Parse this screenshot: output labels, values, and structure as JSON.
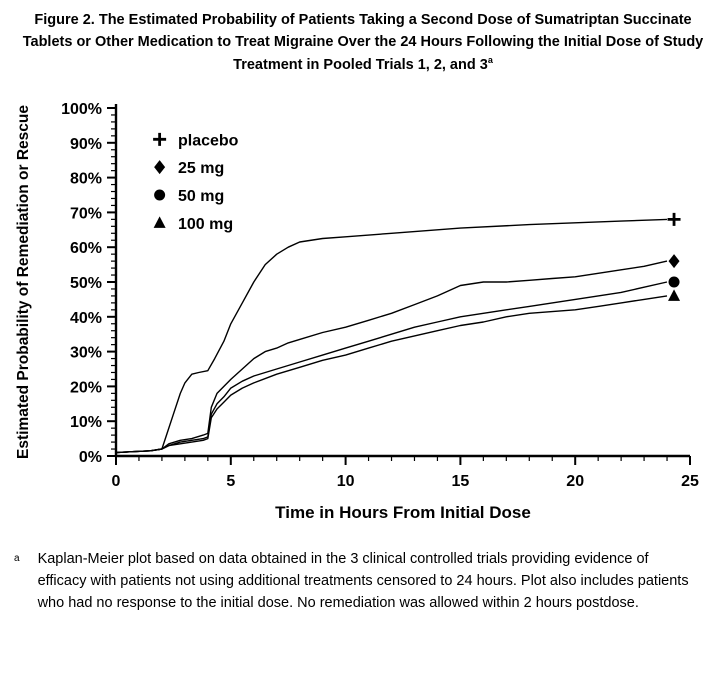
{
  "figure": {
    "title": "Figure 2. The Estimated Probability of Patients Taking a Second Dose of Sumatriptan Succinate Tablets or Other Medication to Treat Migraine Over the 24 Hours Following the Initial Dose of Study Treatment in Pooled Trials 1, 2, and 3",
    "title_sup": "a"
  },
  "footnote": {
    "marker": "a",
    "text": "Kaplan-Meier plot based on data obtained in the 3 clinical controlled trials providing evidence of efficacy with patients not using additional treatments censored to 24 hours. Plot also includes patients who had no response to the initial dose. No remediation was allowed within 2 hours postdose."
  },
  "chart_data": {
    "type": "line",
    "title": "",
    "xlabel": "Time in Hours From Initial Dose",
    "ylabel": "Estimated Probability of Remediation or Rescue",
    "xlim": [
      0,
      25
    ],
    "ylim": [
      0,
      100
    ],
    "xticks": [
      "0",
      "5",
      "10",
      "15",
      "20",
      "25"
    ],
    "xtick_values": [
      0,
      5,
      10,
      15,
      20,
      25
    ],
    "yticks": [
      "0%",
      "10%",
      "20%",
      "30%",
      "40%",
      "50%",
      "60%",
      "70%",
      "80%",
      "90%",
      "100%"
    ],
    "ytick_values": [
      0,
      10,
      20,
      30,
      40,
      50,
      60,
      70,
      80,
      90,
      100
    ],
    "grid": false,
    "line_color": "#000000",
    "legend_position": "upper-left-inside",
    "legend": [
      {
        "marker": "plus",
        "label": "placebo"
      },
      {
        "marker": "diamond",
        "label": "25 mg"
      },
      {
        "marker": "circle",
        "label": "50 mg"
      },
      {
        "marker": "triangle",
        "label": "100 mg"
      }
    ],
    "series": [
      {
        "name": "placebo",
        "marker": "plus",
        "end_value": 68,
        "points": [
          [
            0,
            1
          ],
          [
            1.5,
            1.5
          ],
          [
            2,
            2
          ],
          [
            2.2,
            6
          ],
          [
            2.5,
            12
          ],
          [
            2.8,
            18
          ],
          [
            3,
            21
          ],
          [
            3.3,
            23.5
          ],
          [
            3.6,
            24
          ],
          [
            4,
            24.5
          ],
          [
            4.3,
            28
          ],
          [
            4.7,
            33
          ],
          [
            5,
            38
          ],
          [
            5.5,
            44
          ],
          [
            6,
            50
          ],
          [
            6.5,
            55
          ],
          [
            7,
            58
          ],
          [
            7.5,
            60
          ],
          [
            8,
            61.5
          ],
          [
            9,
            62.5
          ],
          [
            10,
            63
          ],
          [
            12,
            64
          ],
          [
            15,
            65.5
          ],
          [
            18,
            66.5
          ],
          [
            20,
            67
          ],
          [
            22,
            67.5
          ],
          [
            24,
            68
          ]
        ]
      },
      {
        "name": "25 mg",
        "marker": "diamond",
        "end_value": 56,
        "points": [
          [
            0,
            1
          ],
          [
            1.5,
            1.5
          ],
          [
            2,
            2
          ],
          [
            2.3,
            3.5
          ],
          [
            2.8,
            4.5
          ],
          [
            3.3,
            5
          ],
          [
            3.8,
            6
          ],
          [
            4,
            6.5
          ],
          [
            4.15,
            14
          ],
          [
            4.4,
            18
          ],
          [
            4.7,
            20
          ],
          [
            5,
            22
          ],
          [
            5.5,
            25
          ],
          [
            6,
            28
          ],
          [
            6.5,
            30
          ],
          [
            7,
            31
          ],
          [
            7.5,
            32.5
          ],
          [
            8,
            33.5
          ],
          [
            9,
            35.5
          ],
          [
            10,
            37
          ],
          [
            11,
            39
          ],
          [
            12,
            41
          ],
          [
            13,
            43.5
          ],
          [
            14,
            46
          ],
          [
            15,
            49
          ],
          [
            16,
            50
          ],
          [
            17,
            50
          ],
          [
            18,
            50.5
          ],
          [
            19,
            51
          ],
          [
            20,
            51.5
          ],
          [
            21,
            52.5
          ],
          [
            22,
            53.5
          ],
          [
            23,
            54.5
          ],
          [
            24,
            56
          ]
        ]
      },
      {
        "name": "50 mg",
        "marker": "circle",
        "end_value": 50,
        "points": [
          [
            0,
            1
          ],
          [
            1.5,
            1.5
          ],
          [
            2,
            2
          ],
          [
            2.3,
            3
          ],
          [
            2.8,
            4
          ],
          [
            3.3,
            4.5
          ],
          [
            3.8,
            5
          ],
          [
            4,
            5.5
          ],
          [
            4.15,
            12
          ],
          [
            4.4,
            15
          ],
          [
            4.7,
            17
          ],
          [
            5,
            19.5
          ],
          [
            5.5,
            21.5
          ],
          [
            6,
            23
          ],
          [
            7,
            25
          ],
          [
            8,
            27
          ],
          [
            9,
            29
          ],
          [
            10,
            31
          ],
          [
            11,
            33
          ],
          [
            12,
            35
          ],
          [
            13,
            37
          ],
          [
            14,
            38.5
          ],
          [
            15,
            40
          ],
          [
            16,
            41
          ],
          [
            17,
            42
          ],
          [
            18,
            43
          ],
          [
            19,
            44
          ],
          [
            20,
            45
          ],
          [
            21,
            46
          ],
          [
            22,
            47
          ],
          [
            23,
            48.5
          ],
          [
            24,
            50
          ]
        ]
      },
      {
        "name": "100 mg",
        "marker": "triangle",
        "end_value": 46,
        "points": [
          [
            0,
            1
          ],
          [
            1.5,
            1.5
          ],
          [
            2,
            2
          ],
          [
            2.3,
            3
          ],
          [
            2.8,
            3.5
          ],
          [
            3.3,
            4
          ],
          [
            3.8,
            4.5
          ],
          [
            4,
            5
          ],
          [
            4.15,
            11
          ],
          [
            4.4,
            13.5
          ],
          [
            4.7,
            15.5
          ],
          [
            5,
            17.5
          ],
          [
            5.5,
            19.5
          ],
          [
            6,
            21
          ],
          [
            7,
            23.5
          ],
          [
            8,
            25.5
          ],
          [
            9,
            27.5
          ],
          [
            10,
            29
          ],
          [
            11,
            31
          ],
          [
            12,
            33
          ],
          [
            13,
            34.5
          ],
          [
            14,
            36
          ],
          [
            15,
            37.5
          ],
          [
            16,
            38.5
          ],
          [
            17,
            40
          ],
          [
            18,
            41
          ],
          [
            19,
            41.5
          ],
          [
            20,
            42
          ],
          [
            21,
            43
          ],
          [
            22,
            44
          ],
          [
            23,
            45
          ],
          [
            24,
            46
          ]
        ]
      }
    ]
  }
}
